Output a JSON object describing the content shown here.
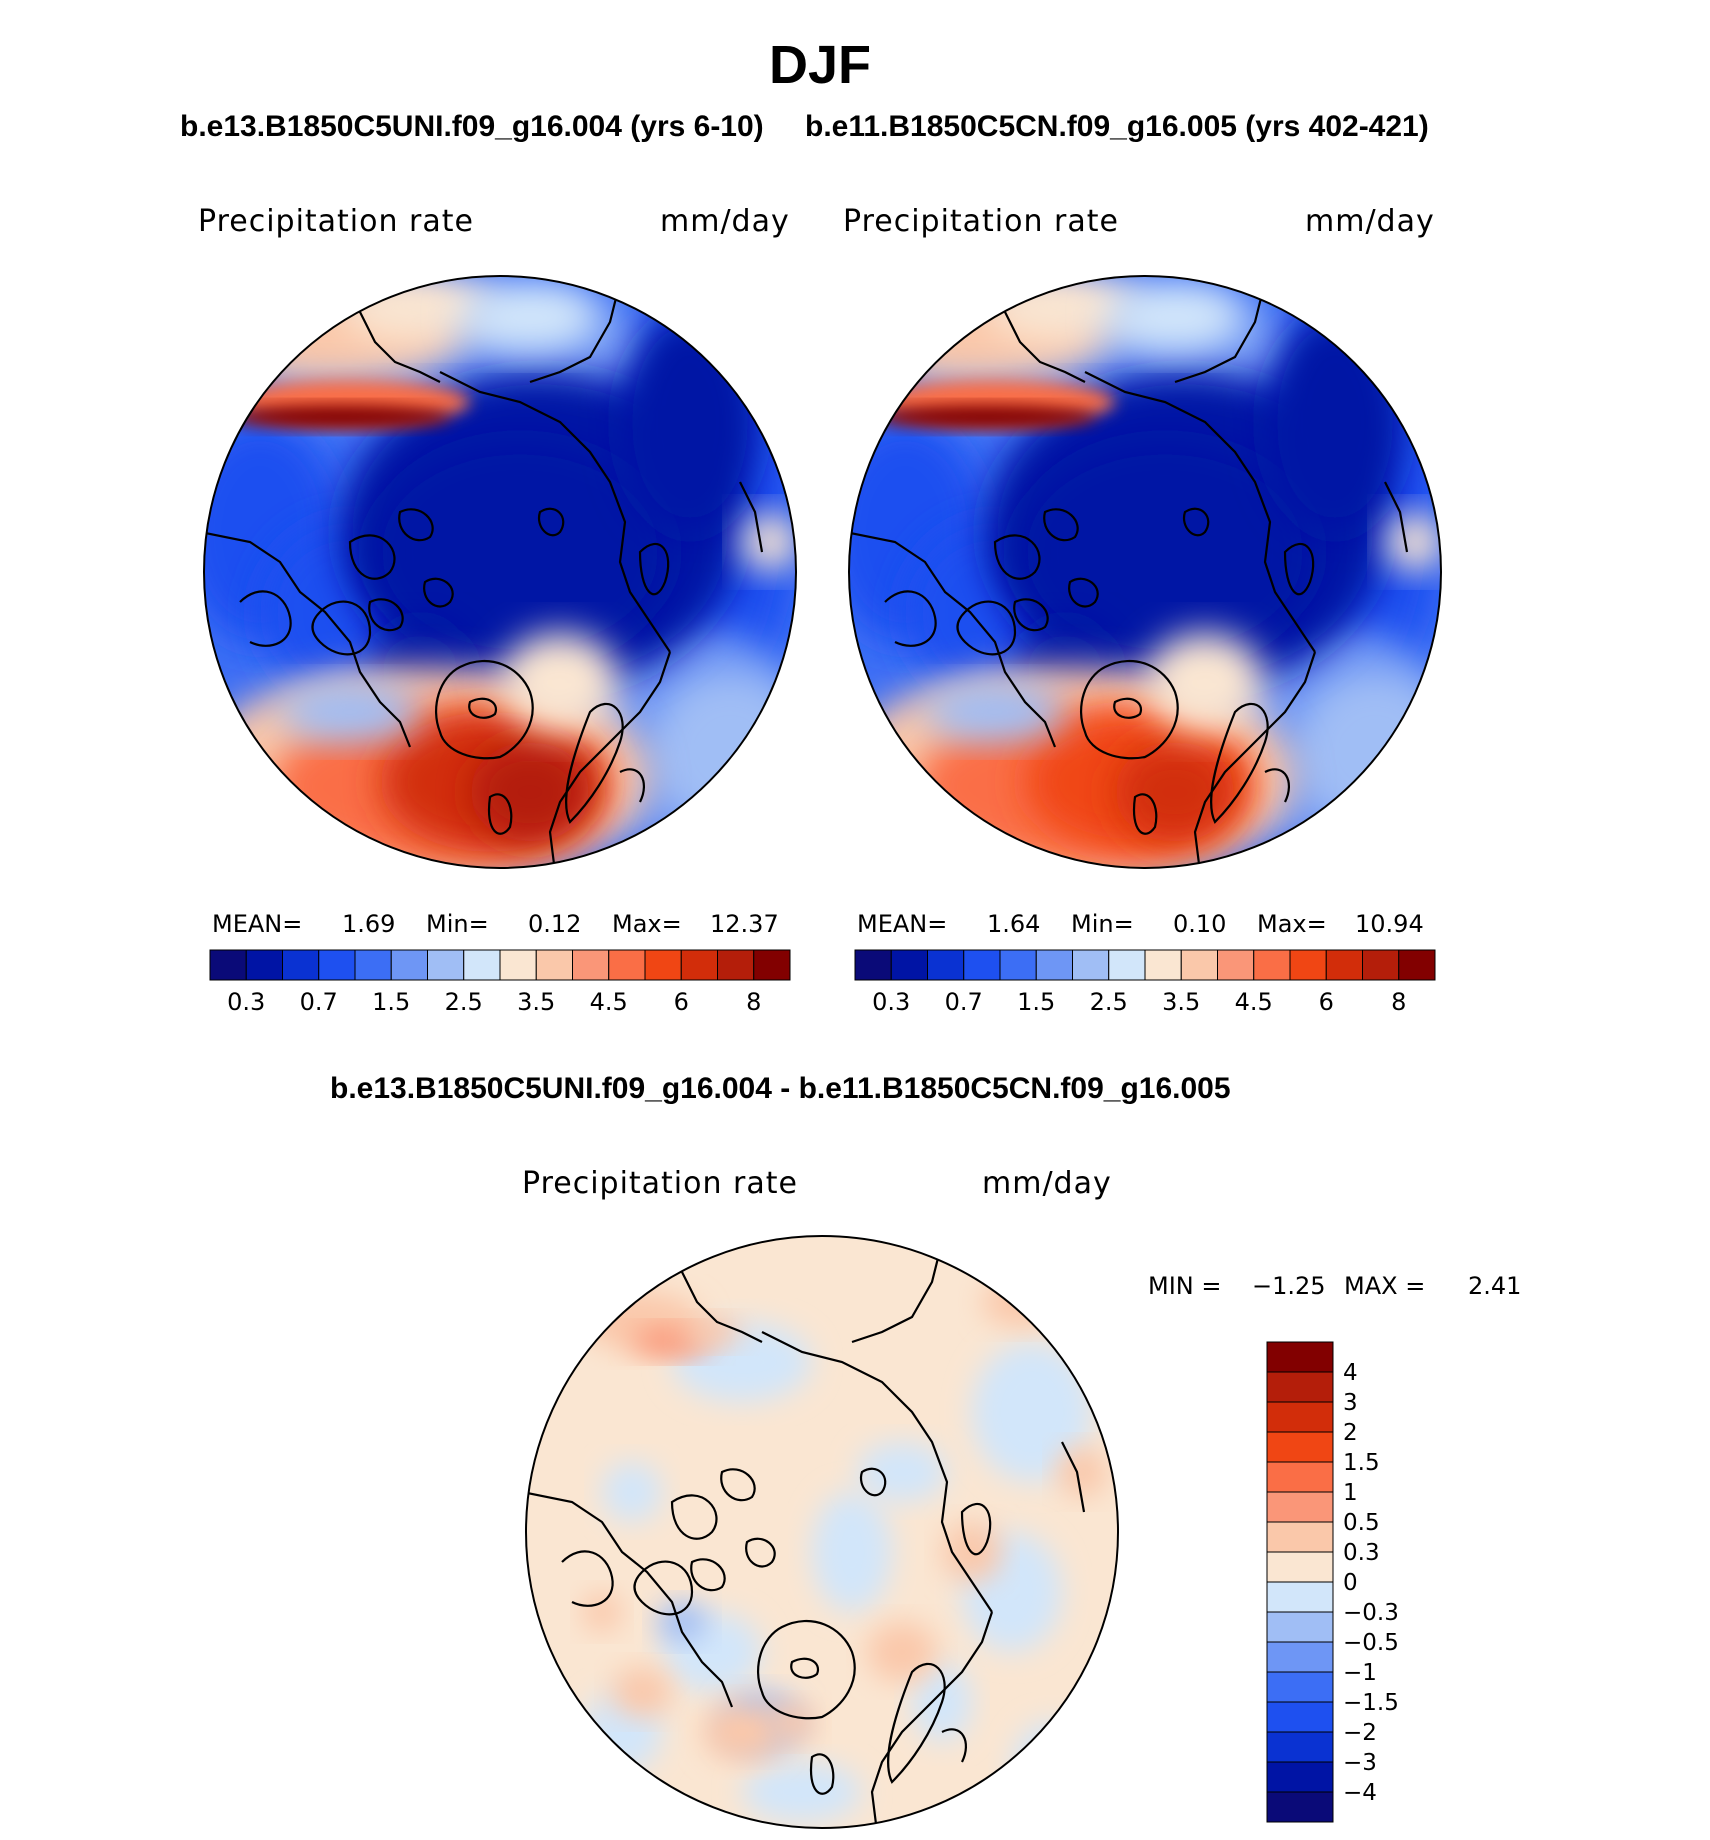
{
  "title": "DJF",
  "chart_data": [
    {
      "type": "heatmap",
      "projection": "north polar stereographic",
      "title": "b.e13.B1850C5UNI.f09_g16.004 (yrs 6-10)",
      "variable": "Precipitation rate",
      "units": "mm/day",
      "stats": {
        "mean_label": "MEAN=",
        "mean": "1.69",
        "min_label": "Min=",
        "min": "0.12",
        "max_label": "Max=",
        "max": "12.37"
      },
      "colorbar": {
        "orientation": "horizontal",
        "levels": [
          0.2,
          0.3,
          0.5,
          0.7,
          1,
          1.5,
          2,
          2.5,
          3,
          3.5,
          4,
          4.5,
          5,
          6,
          7,
          8
        ],
        "tick_labels": [
          "0.3",
          "0.7",
          "1.5",
          "2.5",
          "3.5",
          "4.5",
          "6",
          "8"
        ],
        "colors": [
          "#0a0a78",
          "#0014a5",
          "#0a32d2",
          "#1e50f0",
          "#3c6ef5",
          "#6e96f5",
          "#a0bef5",
          "#d2e6fa",
          "#fae6d2",
          "#fac8aa",
          "#fa9678",
          "#fa6e46",
          "#f04614",
          "#d22d0a",
          "#b41e0a",
          "#820000"
        ]
      },
      "regions": {
        "central_arctic_value": 0.3,
        "north_atlantic_value": 6,
        "north_pacific_value": 8
      }
    },
    {
      "type": "heatmap",
      "projection": "north polar stereographic",
      "title": "b.e11.B1850C5CN.f09_g16.005 (yrs 402-421)",
      "variable": "Precipitation rate",
      "units": "mm/day",
      "stats": {
        "mean_label": "MEAN=",
        "mean": "1.64",
        "min_label": "Min=",
        "min": "0.10",
        "max_label": "Max=",
        "max": "10.94"
      },
      "colorbar": {
        "orientation": "horizontal",
        "levels": [
          0.2,
          0.3,
          0.5,
          0.7,
          1,
          1.5,
          2,
          2.5,
          3,
          3.5,
          4,
          4.5,
          5,
          6,
          7,
          8
        ],
        "tick_labels": [
          "0.3",
          "0.7",
          "1.5",
          "2.5",
          "3.5",
          "4.5",
          "6",
          "8"
        ],
        "colors": [
          "#0a0a78",
          "#0014a5",
          "#0a32d2",
          "#1e50f0",
          "#3c6ef5",
          "#6e96f5",
          "#a0bef5",
          "#d2e6fa",
          "#fae6d2",
          "#fac8aa",
          "#fa9678",
          "#fa6e46",
          "#f04614",
          "#d22d0a",
          "#b41e0a",
          "#820000"
        ]
      },
      "regions": {
        "central_arctic_value": 0.3,
        "north_atlantic_value": 5,
        "north_pacific_value": 8
      }
    },
    {
      "type": "heatmap",
      "projection": "north polar stereographic",
      "title": "b.e13.B1850C5UNI.f09_g16.004 - b.e11.B1850C5CN.f09_g16.005",
      "variable": "Precipitation rate",
      "units": "mm/day",
      "stats": {
        "min_label": "MIN =",
        "min": "−1.25",
        "max_label": "MAX =",
        "max": "2.41"
      },
      "colorbar": {
        "orientation": "vertical",
        "tick_labels": [
          "4",
          "3",
          "2",
          "1.5",
          "1",
          "0.5",
          "0.3",
          "0",
          "−0.3",
          "−0.5",
          "−1",
          "−1.5",
          "−2",
          "−3",
          "−4"
        ],
        "colors": [
          "#820000",
          "#b41e0a",
          "#d22d0a",
          "#f04614",
          "#fa6e46",
          "#fa9678",
          "#fac8aa",
          "#fae6d2",
          "#d2e6fa",
          "#a0bef5",
          "#6e96f5",
          "#3c6ef5",
          "#1e50f0",
          "#0a32d2",
          "#0014a5",
          "#0a0a78"
        ]
      }
    }
  ]
}
